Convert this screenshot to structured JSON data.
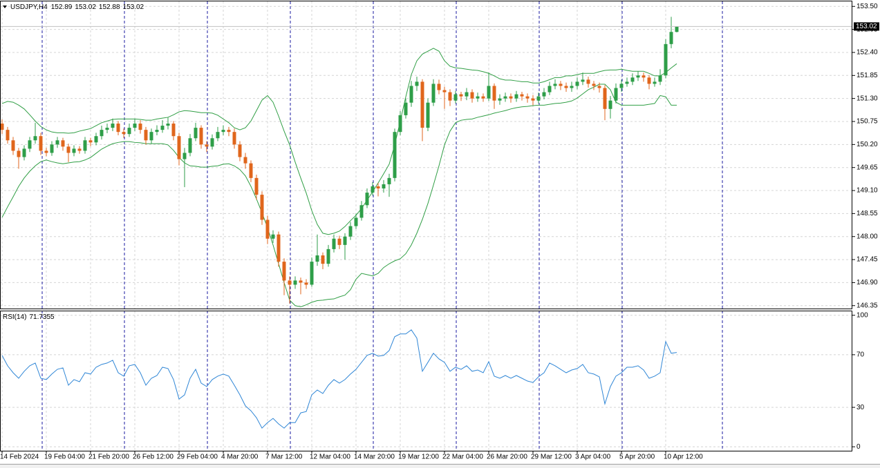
{
  "chart_data": {
    "type": "candlestick",
    "symbol": "USDJPY,H4",
    "up_color": "#2e9e48",
    "down_color": "#e0661c",
    "grid": true,
    "ylim": [
      146.28,
      153.62
    ],
    "yticks": [
      {
        "value": 153.5,
        "label": "153.50"
      },
      {
        "value": 152.95,
        "label": "152.95"
      },
      {
        "value": 152.4,
        "label": "152.40"
      },
      {
        "value": 151.85,
        "label": "151.85"
      },
      {
        "value": 151.3,
        "label": "151.30"
      },
      {
        "value": 150.75,
        "label": "150.75"
      },
      {
        "value": 150.2,
        "label": "150.20"
      },
      {
        "value": 149.65,
        "label": "149.65"
      },
      {
        "value": 149.1,
        "label": "149.10"
      },
      {
        "value": 148.55,
        "label": "148.55"
      },
      {
        "value": 148,
        "label": "148.00"
      },
      {
        "value": 147.45,
        "label": "147.45"
      },
      {
        "value": 146.9,
        "label": "146.90"
      },
      {
        "value": 146.35,
        "label": "146.35"
      }
    ],
    "categories": [
      "14 Feb 2024",
      null,
      null,
      null,
      null,
      null,
      null,
      null,
      "19 Feb 04:00",
      null,
      null,
      null,
      null,
      null,
      null,
      null,
      "21 Feb 20:00",
      null,
      null,
      null,
      null,
      null,
      null,
      null,
      "26 Feb 12:00",
      null,
      null,
      null,
      null,
      null,
      null,
      null,
      "29 Feb 04:00",
      null,
      null,
      null,
      null,
      null,
      null,
      null,
      "4 Mar 20:00",
      null,
      null,
      null,
      null,
      null,
      null,
      null,
      "7 Mar 12:00",
      null,
      null,
      null,
      null,
      null,
      null,
      null,
      "12 Mar 04:00",
      null,
      null,
      null,
      null,
      null,
      null,
      null,
      "14 Mar 20:00",
      null,
      null,
      null,
      null,
      null,
      null,
      null,
      "19 Mar 12:00",
      null,
      null,
      null,
      null,
      null,
      null,
      null,
      "22 Mar 04:00",
      null,
      null,
      null,
      null,
      null,
      null,
      null,
      "26 Mar 20:00",
      null,
      null,
      null,
      null,
      null,
      null,
      null,
      "29 Mar 12:00",
      null,
      null,
      null,
      null,
      null,
      null,
      null,
      "3 Apr 04:00",
      null,
      null,
      null,
      null,
      null,
      null,
      null,
      "5 Apr 20:00",
      null,
      null,
      null,
      null,
      null,
      null,
      null,
      "10 Apr 12:00",
      null,
      null
    ],
    "candles": [
      [
        150.7,
        150.8,
        150.45,
        150.55
      ],
      [
        150.55,
        150.62,
        150.22,
        150.3
      ],
      [
        150.3,
        150.38,
        149.95,
        150.05
      ],
      [
        150.05,
        150.12,
        149.62,
        149.9
      ],
      [
        149.9,
        150.18,
        149.82,
        150.1
      ],
      [
        150.1,
        150.38,
        150.02,
        150.3
      ],
      [
        150.3,
        150.72,
        150.22,
        150.4
      ],
      [
        150.4,
        150.48,
        149.95,
        150.05
      ],
      [
        150.05,
        150.12,
        149.92,
        150.0
      ],
      [
        150.0,
        150.28,
        149.93,
        150.2
      ],
      [
        150.2,
        150.38,
        150.12,
        150.3
      ],
      [
        150.3,
        150.36,
        150.05,
        150.15
      ],
      [
        150.15,
        150.22,
        149.78,
        150.0
      ],
      [
        150.0,
        150.18,
        149.92,
        150.1
      ],
      [
        150.1,
        150.16,
        149.98,
        150.05
      ],
      [
        150.05,
        150.38,
        149.98,
        150.3
      ],
      [
        150.3,
        150.36,
        150.16,
        150.25
      ],
      [
        150.25,
        150.48,
        150.18,
        150.4
      ],
      [
        150.4,
        150.65,
        150.32,
        150.55
      ],
      [
        150.55,
        150.7,
        150.47,
        150.6
      ],
      [
        150.6,
        150.82,
        150.52,
        150.7
      ],
      [
        150.7,
        150.76,
        150.42,
        150.5
      ],
      [
        150.5,
        150.58,
        150.36,
        150.45
      ],
      [
        150.45,
        150.7,
        150.38,
        150.6
      ],
      [
        150.6,
        150.82,
        150.52,
        150.7
      ],
      [
        150.7,
        150.78,
        150.46,
        150.55
      ],
      [
        150.55,
        150.62,
        150.2,
        150.3
      ],
      [
        150.3,
        150.58,
        150.22,
        150.5
      ],
      [
        150.5,
        150.66,
        150.42,
        150.55
      ],
      [
        150.55,
        150.78,
        150.48,
        150.65
      ],
      [
        150.65,
        150.84,
        150.56,
        150.7
      ],
      [
        150.7,
        150.76,
        150.3,
        150.4
      ],
      [
        150.4,
        150.48,
        149.7,
        149.85
      ],
      [
        149.85,
        150.12,
        149.18,
        150.0
      ],
      [
        150.0,
        150.45,
        149.92,
        150.35
      ],
      [
        150.35,
        150.72,
        150.28,
        150.6
      ],
      [
        150.6,
        150.66,
        150.1,
        150.2
      ],
      [
        150.2,
        150.28,
        150.02,
        150.15
      ],
      [
        150.15,
        150.44,
        150.08,
        150.35
      ],
      [
        150.35,
        150.62,
        150.28,
        150.5
      ],
      [
        150.5,
        150.66,
        150.42,
        150.55
      ],
      [
        150.55,
        150.62,
        150.4,
        150.5
      ],
      [
        150.5,
        150.58,
        150.1,
        150.2
      ],
      [
        150.2,
        150.28,
        149.8,
        149.9
      ],
      [
        149.9,
        150.0,
        149.62,
        149.75
      ],
      [
        149.75,
        149.82,
        149.3,
        149.4
      ],
      [
        149.4,
        149.48,
        148.88,
        149.0
      ],
      [
        149.0,
        149.08,
        148.28,
        148.4
      ],
      [
        148.4,
        148.5,
        147.82,
        147.95
      ],
      [
        147.95,
        148.15,
        147.85,
        148.05
      ],
      [
        148.05,
        148.12,
        147.28,
        147.4
      ],
      [
        147.4,
        147.48,
        146.6,
        146.95
      ],
      [
        146.95,
        147.05,
        146.4,
        146.85
      ],
      [
        146.85,
        147.05,
        146.75,
        146.95
      ],
      [
        146.95,
        147.02,
        146.62,
        146.9
      ],
      [
        146.9,
        146.98,
        146.75,
        146.85
      ],
      [
        146.85,
        147.5,
        146.8,
        147.4
      ],
      [
        147.4,
        148.05,
        147.3,
        147.55
      ],
      [
        147.55,
        147.62,
        147.22,
        147.35
      ],
      [
        147.35,
        147.8,
        147.28,
        147.7
      ],
      [
        147.7,
        148.05,
        147.62,
        147.95
      ],
      [
        147.95,
        148.02,
        147.7,
        147.8
      ],
      [
        147.8,
        148.08,
        147.45,
        148.0
      ],
      [
        148.0,
        148.35,
        147.92,
        148.25
      ],
      [
        148.25,
        148.55,
        148.18,
        148.45
      ],
      [
        148.45,
        148.85,
        148.38,
        148.75
      ],
      [
        148.75,
        149.15,
        148.68,
        149.05
      ],
      [
        149.05,
        149.3,
        148.98,
        149.2
      ],
      [
        149.2,
        149.28,
        148.96,
        149.15
      ],
      [
        149.15,
        149.35,
        149.05,
        149.25
      ],
      [
        149.25,
        149.5,
        148.95,
        149.4
      ],
      [
        149.4,
        150.58,
        149.32,
        150.5
      ],
      [
        150.5,
        151.0,
        150.42,
        150.9
      ],
      [
        150.9,
        151.3,
        150.82,
        151.2
      ],
      [
        151.2,
        151.72,
        151.1,
        151.6
      ],
      [
        151.6,
        151.82,
        151.48,
        151.7
      ],
      [
        151.7,
        151.76,
        150.28,
        150.6
      ],
      [
        150.6,
        151.3,
        150.52,
        151.2
      ],
      [
        151.2,
        151.76,
        151.12,
        151.65
      ],
      [
        151.65,
        151.75,
        151.4,
        151.5
      ],
      [
        151.5,
        151.58,
        151.05,
        151.45
      ],
      [
        151.45,
        151.52,
        151.12,
        151.25
      ],
      [
        151.25,
        151.48,
        151.18,
        151.4
      ],
      [
        151.4,
        151.46,
        151.24,
        151.35
      ],
      [
        151.35,
        151.55,
        151.26,
        151.45
      ],
      [
        151.45,
        151.52,
        151.2,
        151.3
      ],
      [
        151.3,
        151.44,
        151.22,
        151.35
      ],
      [
        151.35,
        151.42,
        151.22,
        151.3
      ],
      [
        151.3,
        151.92,
        151.24,
        151.6
      ],
      [
        151.6,
        151.66,
        151.05,
        151.25
      ],
      [
        151.25,
        151.4,
        151.15,
        151.3
      ],
      [
        151.3,
        151.44,
        151.22,
        151.35
      ],
      [
        151.35,
        151.42,
        151.2,
        151.3
      ],
      [
        151.3,
        151.48,
        151.22,
        151.4
      ],
      [
        151.4,
        151.46,
        151.25,
        151.35
      ],
      [
        151.35,
        151.42,
        151.2,
        151.3
      ],
      [
        151.3,
        151.38,
        151.14,
        151.25
      ],
      [
        151.25,
        151.44,
        151.18,
        151.35
      ],
      [
        151.35,
        151.55,
        151.28,
        151.45
      ],
      [
        151.45,
        151.7,
        151.38,
        151.6
      ],
      [
        151.6,
        151.76,
        151.52,
        151.65
      ],
      [
        151.65,
        151.72,
        151.5,
        151.6
      ],
      [
        151.6,
        151.68,
        151.46,
        151.55
      ],
      [
        151.55,
        151.7,
        151.46,
        151.6
      ],
      [
        151.6,
        151.8,
        151.52,
        151.7
      ],
      [
        151.7,
        151.92,
        151.62,
        151.75
      ],
      [
        151.75,
        151.82,
        151.56,
        151.65
      ],
      [
        151.65,
        151.72,
        151.5,
        151.6
      ],
      [
        151.6,
        151.68,
        151.44,
        151.55
      ],
      [
        151.55,
        151.62,
        150.78,
        151.05
      ],
      [
        151.05,
        151.36,
        150.82,
        151.25
      ],
      [
        151.25,
        151.66,
        151.18,
        151.55
      ],
      [
        151.55,
        151.75,
        151.46,
        151.65
      ],
      [
        151.65,
        151.8,
        151.58,
        151.7
      ],
      [
        151.7,
        151.9,
        151.62,
        151.8
      ],
      [
        151.8,
        151.95,
        151.72,
        151.85
      ],
      [
        151.85,
        151.92,
        151.7,
        151.8
      ],
      [
        151.8,
        151.86,
        151.52,
        151.65
      ],
      [
        151.65,
        151.8,
        151.58,
        151.7
      ],
      [
        151.7,
        152.0,
        151.62,
        151.85
      ],
      [
        151.85,
        152.72,
        151.78,
        152.6
      ],
      [
        152.6,
        153.25,
        152.5,
        152.89
      ],
      [
        152.89,
        153.02,
        152.88,
        153.02
      ]
    ],
    "bands": {
      "color": "#2f9e44",
      "upper": [
        151.18,
        151.23,
        151.21,
        151.14,
        151.05,
        150.91,
        150.76,
        150.63,
        150.55,
        150.5,
        150.48,
        150.48,
        150.47,
        150.48,
        150.52,
        150.55,
        150.58,
        150.65,
        150.72,
        150.76,
        150.8,
        150.81,
        150.81,
        150.81,
        150.81,
        150.8,
        150.78,
        150.78,
        150.81,
        150.83,
        150.85,
        150.91,
        150.98,
        151.01,
        151.0,
        150.98,
        150.96,
        150.96,
        150.95,
        150.9,
        150.81,
        150.72,
        150.6,
        150.55,
        150.6,
        150.76,
        151.01,
        151.26,
        151.37,
        151.21,
        150.88,
        150.52,
        150.19,
        149.78,
        149.4,
        149.04,
        148.62,
        148.29,
        148.08,
        148.05,
        148.08,
        148.13,
        148.24,
        148.38,
        148.51,
        148.67,
        148.87,
        149.07,
        149.28,
        149.5,
        149.73,
        150.19,
        150.76,
        151.34,
        151.87,
        152.2,
        152.36,
        152.43,
        152.5,
        152.43,
        152.2,
        152.07,
        152.03,
        152.02,
        152.0,
        151.98,
        151.97,
        151.94,
        151.9,
        151.84,
        151.77,
        151.74,
        151.74,
        151.72,
        151.7,
        151.7,
        151.67,
        151.67,
        151.7,
        151.75,
        151.8,
        151.8,
        151.84,
        151.84,
        151.87,
        151.9,
        151.9,
        151.9,
        151.94,
        151.97,
        151.98,
        151.98,
        152.0,
        151.97,
        151.95,
        151.95,
        151.95,
        151.9,
        151.84,
        151.84,
        151.92,
        152.03,
        152.13
      ],
      "lower": [
        148.46,
        148.71,
        148.95,
        149.2,
        149.4,
        149.56,
        149.69,
        149.79,
        149.83,
        149.79,
        149.76,
        149.74,
        149.76,
        149.78,
        149.79,
        149.83,
        149.89,
        149.99,
        150.09,
        150.16,
        150.22,
        150.25,
        150.27,
        150.27,
        150.25,
        150.24,
        150.22,
        150.22,
        150.22,
        150.22,
        150.19,
        150.06,
        149.89,
        149.76,
        149.69,
        149.68,
        149.66,
        149.66,
        149.68,
        149.69,
        149.73,
        149.74,
        149.69,
        149.6,
        149.45,
        149.2,
        148.9,
        148.57,
        148.21,
        147.8,
        147.35,
        146.9,
        146.48,
        146.35,
        146.32,
        146.37,
        146.43,
        146.47,
        146.48,
        146.5,
        146.51,
        146.56,
        146.6,
        146.73,
        146.98,
        147.12,
        147.09,
        147.06,
        147.12,
        147.26,
        147.35,
        147.42,
        147.47,
        147.59,
        147.8,
        148.08,
        148.41,
        148.79,
        149.23,
        149.69,
        150.19,
        150.52,
        150.72,
        150.78,
        150.8,
        150.81,
        150.85,
        150.88,
        150.91,
        150.95,
        150.98,
        151.01,
        151.05,
        151.08,
        151.1,
        151.11,
        151.13,
        151.14,
        151.14,
        151.16,
        151.18,
        151.19,
        151.21,
        151.24,
        151.31,
        151.41,
        151.51,
        151.57,
        151.64,
        151.64,
        151.51,
        151.21,
        151.14,
        151.14,
        151.14,
        151.14,
        151.14,
        151.16,
        151.18,
        151.37,
        151.34,
        151.14,
        151.14
      ]
    },
    "rsi": {
      "name": "RSI(14)",
      "color": "#2f86d6",
      "ylim": [
        -3,
        103
      ],
      "yticks": [
        0,
        30,
        70,
        100
      ],
      "values": [
        69.5,
        61.6,
        56.3,
        52.1,
        57.4,
        61.6,
        63.7,
        52.1,
        51.1,
        55.3,
        58.9,
        60.0,
        46.8,
        51.1,
        49.5,
        56.3,
        55.3,
        60.5,
        62.6,
        63.7,
        65.8,
        56.3,
        53.7,
        61.6,
        62.6,
        56.3,
        46.8,
        52.1,
        54.2,
        60.5,
        59.5,
        51.1,
        36.3,
        39.5,
        52.1,
        58.9,
        48.4,
        45.8,
        51.1,
        53.7,
        55.3,
        53.7,
        46.8,
        39.5,
        31.1,
        27.4,
        22.1,
        14.2,
        18.4,
        21.6,
        17.4,
        14.2,
        18.4,
        18.4,
        25.8,
        26.8,
        39.5,
        43.2,
        40.5,
        46.8,
        51.1,
        48.4,
        51.1,
        55.3,
        58.9,
        64.2,
        69.5,
        71.1,
        68.9,
        69.5,
        73.2,
        83.7,
        85.8,
        85.8,
        88.9,
        82.6,
        57.4,
        64.2,
        71.1,
        66.8,
        64.2,
        57.4,
        60.5,
        58.9,
        61.6,
        57.4,
        58.4,
        56.3,
        64.7,
        53.7,
        52.1,
        54.2,
        52.1,
        54.2,
        52.1,
        50.0,
        48.9,
        53.2,
        56.3,
        63.7,
        61.6,
        58.9,
        56.3,
        58.4,
        59.5,
        62.6,
        56.3,
        55.3,
        53.2,
        32.6,
        45.8,
        53.7,
        56.3,
        60.5,
        60.5,
        61.6,
        58.4,
        52.1,
        53.7,
        56.3,
        80.0,
        71.1,
        71.7355
      ]
    }
  }
}
